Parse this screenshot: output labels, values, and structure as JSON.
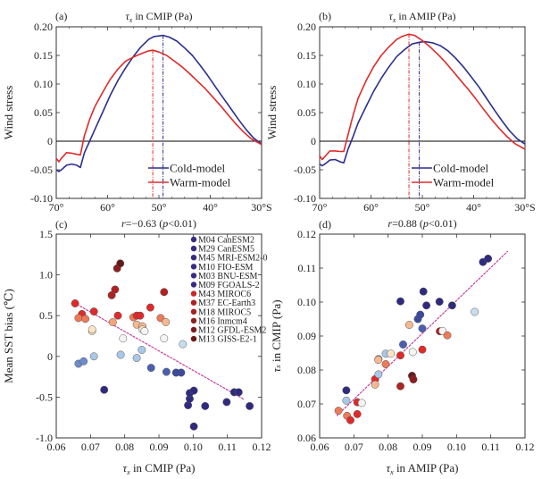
{
  "chart_data": [
    {
      "id": "a",
      "type": "line",
      "panel_label": "(a)",
      "title": "τx in CMIP (Pa)",
      "ylabel": "Wind stress",
      "xlabel": "",
      "xlim": [
        70,
        30
      ],
      "ylim": [
        -0.1,
        0.2
      ],
      "xticks": [
        70,
        60,
        50,
        40,
        30
      ],
      "xtick_labels": [
        "70°",
        "60°",
        "50°",
        "40°",
        "30°S"
      ],
      "yticks": [
        -0.1,
        -0.05,
        0,
        0.05,
        0.1,
        0.15,
        0.2
      ],
      "ytick_labels": [
        "-0.10",
        "-0.05",
        "0",
        "0.05",
        "0.10",
        "0.15",
        "0.20"
      ],
      "zero_line": true,
      "legend_position": "bottom-right",
      "series": [
        {
          "name": "Cold-model",
          "color": "#2b2f8c",
          "x": [
            70,
            69.5,
            69,
            68,
            67,
            66,
            65.3,
            64.5,
            63.5,
            62.5,
            61,
            59.5,
            58,
            56.5,
            55,
            53.5,
            52,
            51,
            49.2,
            48,
            46.5,
            45,
            43.5,
            42,
            40.5,
            39,
            37.5,
            36,
            34.5,
            33,
            31.5,
            30
          ],
          "y": [
            -0.05,
            -0.053,
            -0.05,
            -0.042,
            -0.04,
            -0.042,
            -0.046,
            -0.02,
            0.0,
            0.02,
            0.05,
            0.08,
            0.106,
            0.128,
            0.148,
            0.165,
            0.178,
            0.183,
            0.185,
            0.182,
            0.175,
            0.163,
            0.15,
            0.133,
            0.115,
            0.095,
            0.076,
            0.057,
            0.038,
            0.02,
            0.005,
            -0.005
          ],
          "peak_lat": 49.2
        },
        {
          "name": "Warm-model",
          "color": "#e02a2a",
          "x": [
            70,
            69.5,
            69,
            68,
            67,
            66,
            65.3,
            64.5,
            63.5,
            62.5,
            61,
            59.5,
            58,
            56.5,
            55,
            53.5,
            52,
            51.2,
            50,
            48.5,
            47,
            45.5,
            44,
            42.5,
            41,
            39.5,
            38,
            36.5,
            35,
            33.5,
            32,
            30
          ],
          "y": [
            -0.03,
            -0.036,
            -0.03,
            -0.02,
            -0.021,
            -0.023,
            -0.024,
            0.01,
            0.038,
            0.06,
            0.085,
            0.108,
            0.126,
            0.14,
            0.147,
            0.153,
            0.158,
            0.159,
            0.156,
            0.15,
            0.14,
            0.13,
            0.118,
            0.105,
            0.092,
            0.077,
            0.062,
            0.046,
            0.03,
            0.016,
            0.004,
            -0.006
          ],
          "peak_lat": 51.2
        }
      ]
    },
    {
      "id": "b",
      "type": "line",
      "panel_label": "(b)",
      "title": "τx in AMIP (Pa)",
      "ylabel": "Wind stress",
      "xlabel": "",
      "xlim": [
        70,
        30
      ],
      "ylim": [
        -0.1,
        0.2
      ],
      "xticks": [
        70,
        60,
        50,
        40,
        30
      ],
      "xtick_labels": [
        "70°",
        "60°",
        "50°",
        "40°",
        "30°S"
      ],
      "yticks": [
        -0.1,
        -0.05,
        0,
        0.05,
        0.1,
        0.15,
        0.2
      ],
      "ytick_labels": [
        "-0.10",
        "-0.05",
        "0",
        "0.05",
        "0.10",
        "0.15",
        "0.20"
      ],
      "zero_line": true,
      "legend_position": "bottom-right",
      "series": [
        {
          "name": "Cold-model",
          "color": "#2b2f8c",
          "x": [
            70,
            69.5,
            69,
            68,
            67,
            66,
            65.3,
            64.5,
            63.5,
            62.5,
            61,
            59.5,
            58,
            56.5,
            55,
            53.5,
            52,
            50.6,
            49.5,
            48,
            46.5,
            45,
            43.5,
            42,
            40.5,
            39,
            37.5,
            36,
            34.5,
            33,
            31.5,
            30
          ],
          "y": [
            -0.04,
            -0.043,
            -0.04,
            -0.033,
            -0.032,
            -0.036,
            -0.038,
            -0.015,
            0.008,
            0.032,
            0.06,
            0.087,
            0.11,
            0.13,
            0.148,
            0.16,
            0.17,
            0.173,
            0.174,
            0.172,
            0.167,
            0.158,
            0.145,
            0.13,
            0.113,
            0.095,
            0.075,
            0.055,
            0.036,
            0.018,
            0.004,
            -0.005
          ],
          "peak_lat": 50.6
        },
        {
          "name": "Warm-model",
          "color": "#e02a2a",
          "x": [
            70,
            69.5,
            69,
            68,
            67,
            66,
            65.3,
            64.5,
            63.5,
            62.5,
            61,
            59.5,
            58,
            56.5,
            55,
            54,
            52.6,
            51.5,
            50,
            48.5,
            47,
            45.5,
            44,
            42.5,
            41,
            39.5,
            38,
            36.5,
            35,
            33.5,
            32,
            30
          ],
          "y": [
            -0.026,
            -0.032,
            -0.027,
            -0.017,
            -0.017,
            -0.018,
            -0.018,
            0.01,
            0.045,
            0.075,
            0.105,
            0.13,
            0.15,
            0.165,
            0.178,
            0.183,
            0.187,
            0.185,
            0.176,
            0.165,
            0.152,
            0.138,
            0.122,
            0.106,
            0.09,
            0.073,
            0.055,
            0.038,
            0.022,
            0.008,
            -0.004,
            -0.014
          ],
          "peak_lat": 52.6
        }
      ]
    },
    {
      "id": "c",
      "type": "scatter",
      "panel_label": "(c)",
      "title": "r=−0.63 (p<0.01)",
      "xlabel": "τx in CMIP (Pa)",
      "ylabel": "Mean SST bias (°C)",
      "xlim": [
        0.06,
        0.12
      ],
      "ylim": [
        -1.0,
        1.5
      ],
      "xticks": [
        0.06,
        0.07,
        0.08,
        0.09,
        0.1,
        0.11,
        0.12
      ],
      "xtick_labels": [
        "0.06",
        "0.07",
        "0.08",
        "0.09",
        "0.10",
        "0.11",
        "0.12"
      ],
      "yticks": [
        -1.0,
        -0.5,
        0,
        0.5,
        1.0,
        1.5
      ],
      "ytick_labels": [
        "-1.0",
        "-0.5",
        "0",
        "0.5",
        "1.0",
        "1.5"
      ],
      "fit_line": {
        "x": [
          0.066,
          0.115
        ],
        "y": [
          0.64,
          -0.53
        ],
        "color": "#c0309a"
      },
      "legend_position": "top-right",
      "legend": [
        {
          "label": "M04 CanESM2",
          "color": "#3a2a85"
        },
        {
          "label": "M29 CanESM5",
          "color": "#3a2a85"
        },
        {
          "label": "M45 MRI-ESM2-0",
          "color": "#3a2a85"
        },
        {
          "label": "M10 FIO-ESM",
          "color": "#3a2a85"
        },
        {
          "label": "M03 BNU-ESM",
          "color": "#3a2a85"
        },
        {
          "label": "M09 FGOALS-2",
          "color": "#3a2a85"
        },
        {
          "label": "M43 MIROC6",
          "color": "#c82828"
        },
        {
          "label": "M37 EC-Earth3",
          "color": "#b02222"
        },
        {
          "label": "M18 MIROC5",
          "color": "#a82020"
        },
        {
          "label": "M16 Inmcm4",
          "color": "#902020"
        },
        {
          "label": "M12 GFDL-ESM2",
          "color": "#7a1c1c"
        },
        {
          "label": "M13 GISS-E2-1",
          "color": "#6a1818"
        }
      ],
      "points": [
        {
          "x": 0.0655,
          "y": 0.65,
          "color": "#e02a2a"
        },
        {
          "x": 0.0675,
          "y": 0.52,
          "color": "#e02a2a"
        },
        {
          "x": 0.0665,
          "y": 0.47,
          "color": "#ee7a58"
        },
        {
          "x": 0.0685,
          "y": 0.46,
          "color": "#ee7a58"
        },
        {
          "x": 0.071,
          "y": 0.55,
          "color": "#e02a2a"
        },
        {
          "x": 0.0705,
          "y": 0.31,
          "color": "#fde4c4"
        },
        {
          "x": 0.0705,
          "y": 0.33,
          "color": "#fde4c4"
        },
        {
          "x": 0.0762,
          "y": 0.75,
          "color": "#b02222"
        },
        {
          "x": 0.0772,
          "y": 0.82,
          "color": "#b02222"
        },
        {
          "x": 0.0778,
          "y": 1.08,
          "color": "#8a1d1d"
        },
        {
          "x": 0.0787,
          "y": 1.14,
          "color": "#6a1818"
        },
        {
          "x": 0.0765,
          "y": 0.42,
          "color": "#f5a47a"
        },
        {
          "x": 0.078,
          "y": 0.5,
          "color": "#e02a2a"
        },
        {
          "x": 0.0795,
          "y": 0.22,
          "color": "#f4f4f4"
        },
        {
          "x": 0.0825,
          "y": 0.48,
          "color": "#ee7a58"
        },
        {
          "x": 0.0835,
          "y": 0.5,
          "color": "#e02a2a"
        },
        {
          "x": 0.0845,
          "y": 0.5,
          "color": "#e02a2a"
        },
        {
          "x": 0.0835,
          "y": 0.39,
          "color": "#f5b890"
        },
        {
          "x": 0.0852,
          "y": 0.37,
          "color": "#f5b890"
        },
        {
          "x": 0.0852,
          "y": 0.33,
          "color": "#fde4c4"
        },
        {
          "x": 0.0858,
          "y": 0.31,
          "color": "#f4f4f4"
        },
        {
          "x": 0.0875,
          "y": 0.6,
          "color": "#e02a2a"
        },
        {
          "x": 0.0905,
          "y": 0.47,
          "color": "#ee7a58"
        },
        {
          "x": 0.0915,
          "y": 0.79,
          "color": "#b02222"
        },
        {
          "x": 0.092,
          "y": 0.42,
          "color": "#f5b890"
        },
        {
          "x": 0.0915,
          "y": 0.22,
          "color": "#f4f4f4"
        },
        {
          "x": 0.097,
          "y": 0.15,
          "color": "#c7def0"
        },
        {
          "x": 0.0665,
          "y": -0.09,
          "color": "#6d8ccc"
        },
        {
          "x": 0.068,
          "y": -0.06,
          "color": "#6d8ccc"
        },
        {
          "x": 0.071,
          "y": 0.0,
          "color": "#a9c8e8"
        },
        {
          "x": 0.0788,
          "y": 0.02,
          "color": "#a9c8e8"
        },
        {
          "x": 0.0835,
          "y": -0.02,
          "color": "#a9c8e8"
        },
        {
          "x": 0.085,
          "y": 0.08,
          "color": "#a9c8e8"
        },
        {
          "x": 0.074,
          "y": -0.41,
          "color": "#2f2a80"
        },
        {
          "x": 0.0877,
          "y": -0.14,
          "color": "#4a5fb0"
        },
        {
          "x": 0.0922,
          "y": -0.19,
          "color": "#4a5fb0"
        },
        {
          "x": 0.095,
          "y": -0.2,
          "color": "#3a4a9e"
        },
        {
          "x": 0.0965,
          "y": -0.2,
          "color": "#3a4a9e"
        },
        {
          "x": 0.0985,
          "y": -0.6,
          "color": "#2f2a80"
        },
        {
          "x": 0.099,
          "y": -0.52,
          "color": "#2f2a80"
        },
        {
          "x": 0.099,
          "y": -0.45,
          "color": "#2f2a80"
        },
        {
          "x": 0.1002,
          "y": -0.42,
          "color": "#2f2a80"
        },
        {
          "x": 0.1002,
          "y": -0.86,
          "color": "#2f2a80"
        },
        {
          "x": 0.1035,
          "y": -0.61,
          "color": "#2f2a80"
        },
        {
          "x": 0.1098,
          "y": -0.56,
          "color": "#2f2a80"
        },
        {
          "x": 0.112,
          "y": -0.44,
          "color": "#2f2a80"
        },
        {
          "x": 0.1133,
          "y": -0.44,
          "color": "#2f2a80"
        },
        {
          "x": 0.1165,
          "y": -0.61,
          "color": "#2f2a80"
        }
      ]
    },
    {
      "id": "d",
      "type": "scatter",
      "panel_label": "(d)",
      "title": "r=0.88 (p<0.01)",
      "xlabel": "τx in AMIP (Pa)",
      "ylabel": "τx in CMIP (Pa)",
      "xlim": [
        0.06,
        0.12
      ],
      "ylim": [
        0.06,
        0.12
      ],
      "xticks": [
        0.06,
        0.07,
        0.08,
        0.09,
        0.1,
        0.11,
        0.12
      ],
      "xtick_labels": [
        "0.06",
        "0.07",
        "0.08",
        "0.09",
        "0.10",
        "0.11",
        "0.12"
      ],
      "yticks": [
        0.06,
        0.07,
        0.08,
        0.09,
        0.1,
        0.11,
        0.12
      ],
      "ytick_labels": [
        "0.06",
        "0.07",
        "0.08",
        "0.09",
        "0.10",
        "0.11",
        "0.12"
      ],
      "fit_line": {
        "x": [
          0.065,
          0.115
        ],
        "y": [
          0.0665,
          0.115
        ],
        "color": "#c0309a"
      },
      "points": [
        {
          "x": 0.0655,
          "y": 0.068,
          "color": "#ee7a58"
        },
        {
          "x": 0.068,
          "y": 0.0665,
          "color": "#ee7a58"
        },
        {
          "x": 0.069,
          "y": 0.0652,
          "color": "#e02a2a"
        },
        {
          "x": 0.0678,
          "y": 0.074,
          "color": "#2f2a80"
        },
        {
          "x": 0.0678,
          "y": 0.071,
          "color": "#a9c8e8"
        },
        {
          "x": 0.071,
          "y": 0.0705,
          "color": "#e02a2a"
        },
        {
          "x": 0.0723,
          "y": 0.0703,
          "color": "#f4f4f4"
        },
        {
          "x": 0.071,
          "y": 0.067,
          "color": "#e02a2a"
        },
        {
          "x": 0.0762,
          "y": 0.0773,
          "color": "#e02a2a"
        },
        {
          "x": 0.0762,
          "y": 0.0757,
          "color": "#f5b890"
        },
        {
          "x": 0.0772,
          "y": 0.0787,
          "color": "#a9c8e8"
        },
        {
          "x": 0.0772,
          "y": 0.0832,
          "color": "#6d8ccc"
        },
        {
          "x": 0.0771,
          "y": 0.083,
          "color": "#f5b890"
        },
        {
          "x": 0.0793,
          "y": 0.0848,
          "color": "#a9c8e8"
        },
        {
          "x": 0.0808,
          "y": 0.0848,
          "color": "#fde4c4"
        },
        {
          "x": 0.0793,
          "y": 0.0817,
          "color": "#ee7a58"
        },
        {
          "x": 0.0836,
          "y": 0.0843,
          "color": "#e02a2a"
        },
        {
          "x": 0.0844,
          "y": 0.0875,
          "color": "#4a5fb0"
        },
        {
          "x": 0.0872,
          "y": 0.0853,
          "color": "#f4f4f4"
        },
        {
          "x": 0.09,
          "y": 0.086,
          "color": "#e02a2a"
        },
        {
          "x": 0.0836,
          "y": 0.0752,
          "color": "#b02222"
        },
        {
          "x": 0.087,
          "y": 0.0783,
          "color": "#6a1818"
        },
        {
          "x": 0.0874,
          "y": 0.0772,
          "color": "#8a1d1d"
        },
        {
          "x": 0.0836,
          "y": 0.1002,
          "color": "#2f2a80"
        },
        {
          "x": 0.0862,
          "y": 0.0933,
          "color": "#f5b890"
        },
        {
          "x": 0.0887,
          "y": 0.095,
          "color": "#3a4a9e"
        },
        {
          "x": 0.0894,
          "y": 0.0963,
          "color": "#3a4a9e"
        },
        {
          "x": 0.09,
          "y": 0.0922,
          "color": "#4a5fb0"
        },
        {
          "x": 0.0903,
          "y": 0.1031,
          "color": "#2f2a80"
        },
        {
          "x": 0.0912,
          "y": 0.099,
          "color": "#2f2a80"
        },
        {
          "x": 0.095,
          "y": 0.1001,
          "color": "#2f2a80"
        },
        {
          "x": 0.0951,
          "y": 0.0914,
          "color": "#b02222"
        },
        {
          "x": 0.0959,
          "y": 0.0915,
          "color": "#f4f4f4"
        },
        {
          "x": 0.0973,
          "y": 0.0902,
          "color": "#ee7a58"
        },
        {
          "x": 0.0987,
          "y": 0.099,
          "color": "#2f2a80"
        },
        {
          "x": 0.1053,
          "y": 0.0971,
          "color": "#c7def0"
        },
        {
          "x": 0.1077,
          "y": 0.1118,
          "color": "#2f2a80"
        },
        {
          "x": 0.1092,
          "y": 0.1128,
          "color": "#2f2a80"
        }
      ]
    }
  ]
}
